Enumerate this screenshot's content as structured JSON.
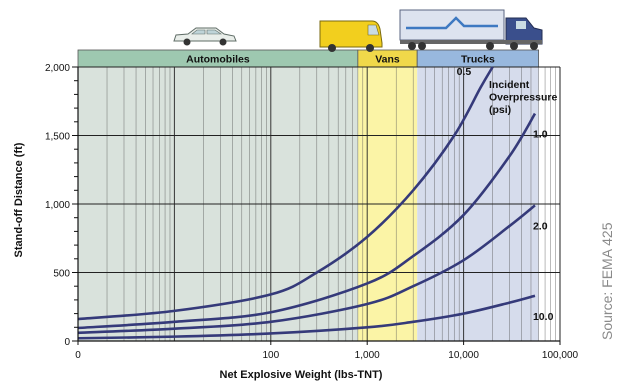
{
  "source_note": "Source: FEMA 425",
  "colors": {
    "automobiles_zone": "#d9e2dc",
    "vans_zone": "#fbf4a6",
    "trucks_zone": "#d6dcec",
    "automobiles_header": "#9ec8b0",
    "vans_header": "#f0d84a",
    "trucks_header": "#98b8de",
    "curve": "#353a7a",
    "gridline": "#222222"
  },
  "chart_data": {
    "type": "line",
    "title": "",
    "xlabel": "Net Explosive Weight (lbs-TNT)",
    "ylabel": "Stand-off Distance (ft)",
    "x_scale": "log",
    "x_ticks": [
      {
        "value": 1,
        "label": "0"
      },
      {
        "value": 100,
        "label": "100"
      },
      {
        "value": 1000,
        "label": "1,000"
      },
      {
        "value": 10000,
        "label": "10,000"
      },
      {
        "value": 100000,
        "label": "100,000"
      }
    ],
    "y_ticks": [
      "0",
      "500",
      "1,000",
      "1,500",
      "2,000"
    ],
    "ylim": [
      0,
      2000
    ],
    "xlim": [
      1,
      100000
    ],
    "grid": true,
    "zones": [
      {
        "name": "Automobiles",
        "x_from": 1,
        "x_to": 800
      },
      {
        "name": "Vans",
        "x_from": 800,
        "x_to": 3300
      },
      {
        "name": "Trucks",
        "x_from": 3300,
        "x_to": 60000
      }
    ],
    "legend_title": "Incident Overpressure (psi)",
    "series": [
      {
        "name": "0.5",
        "x": [
          1,
          10,
          100,
          300,
          1000,
          3000,
          8000,
          15000,
          20000
        ],
        "y": [
          160,
          220,
          340,
          500,
          760,
          1100,
          1500,
          1850,
          2000
        ]
      },
      {
        "name": "1.0",
        "x": [
          1,
          10,
          100,
          1000,
          3000,
          10000,
          30000,
          55000
        ],
        "y": [
          95,
          140,
          210,
          420,
          620,
          920,
          1350,
          1660
        ]
      },
      {
        "name": "2.0",
        "x": [
          1,
          10,
          100,
          1000,
          3000,
          10000,
          30000,
          55000
        ],
        "y": [
          60,
          90,
          140,
          270,
          400,
          590,
          840,
          990
        ]
      },
      {
        "name": "10.0",
        "x": [
          1,
          10,
          100,
          1000,
          3000,
          10000,
          30000,
          55000
        ],
        "y": [
          20,
          32,
          55,
          100,
          140,
          200,
          280,
          330
        ]
      }
    ]
  }
}
